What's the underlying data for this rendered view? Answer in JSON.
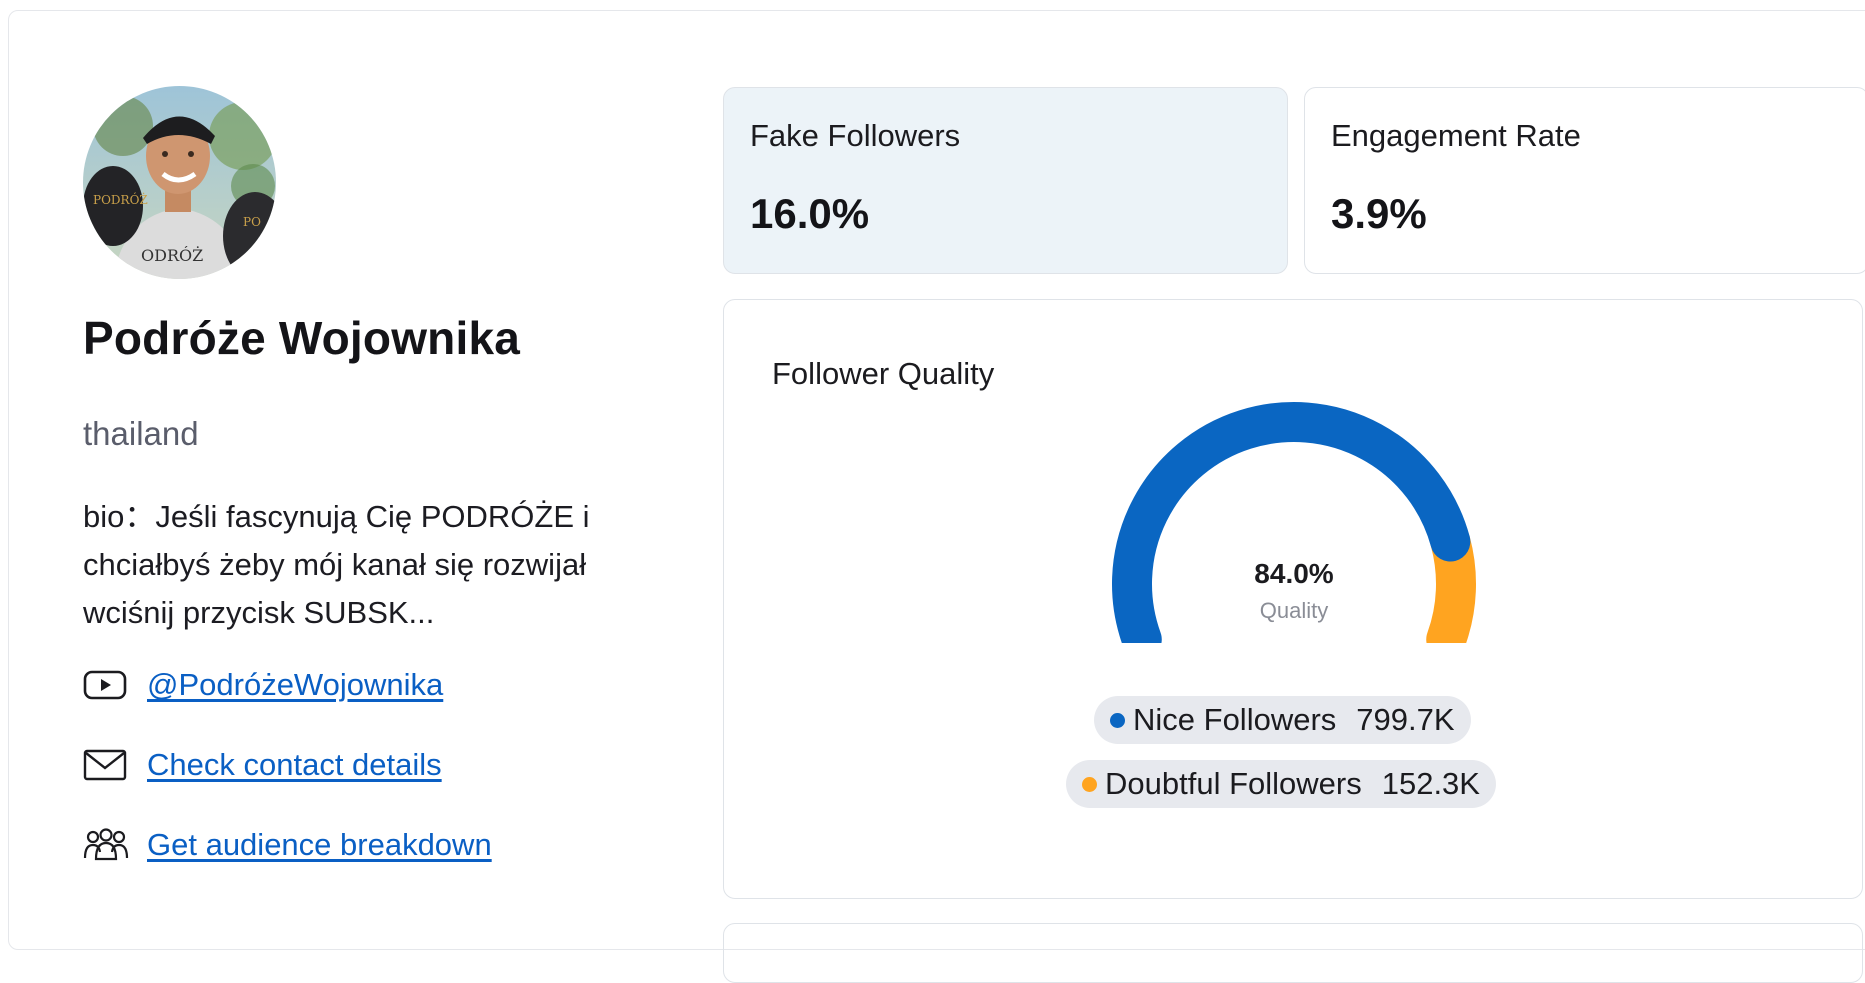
{
  "profile": {
    "name": "Podróże Wojownika",
    "location": "thailand",
    "bio": "bio：Jeśli fascynują Cię PODRÓŻE i chciałbyś żeby mój kanał się rozwijał wciśnij przycisk SUBSK...",
    "avatar_icon": "avatar-photo"
  },
  "links": {
    "youtube": {
      "icon": "youtube-icon",
      "label": "@PodróżeWojownika"
    },
    "contact": {
      "icon": "mail-icon",
      "label": "Check contact details"
    },
    "audience": {
      "icon": "people-icon",
      "label": "Get audience breakdown"
    }
  },
  "stats": {
    "fake_followers": {
      "label": "Fake Followers",
      "value": "16.0%"
    },
    "engagement_rate": {
      "label": "Engagement Rate",
      "value": "3.9%"
    }
  },
  "follower_quality": {
    "title": "Follower Quality",
    "gauge_value": "84.0%",
    "gauge_label": "Quality",
    "legend": [
      {
        "label": "Nice Followers",
        "value": "799.7K",
        "color": "#0a66c2"
      },
      {
        "label": "Doubtful Followers",
        "value": "152.3K",
        "color": "#ffa420"
      }
    ]
  },
  "chart_data": {
    "type": "pie",
    "title": "Follower Quality",
    "categories": [
      "Nice Followers",
      "Doubtful Followers"
    ],
    "values": [
      799.7,
      152.3
    ],
    "percentages": [
      84.0,
      16.0
    ],
    "unit": "K",
    "colors": [
      "#0a66c2",
      "#ffa420"
    ]
  },
  "colors": {
    "link": "#0a5fc4",
    "accent_blue": "#0a66c2",
    "accent_orange": "#ffa420",
    "fake_card_bg": "#ecf3f8"
  }
}
